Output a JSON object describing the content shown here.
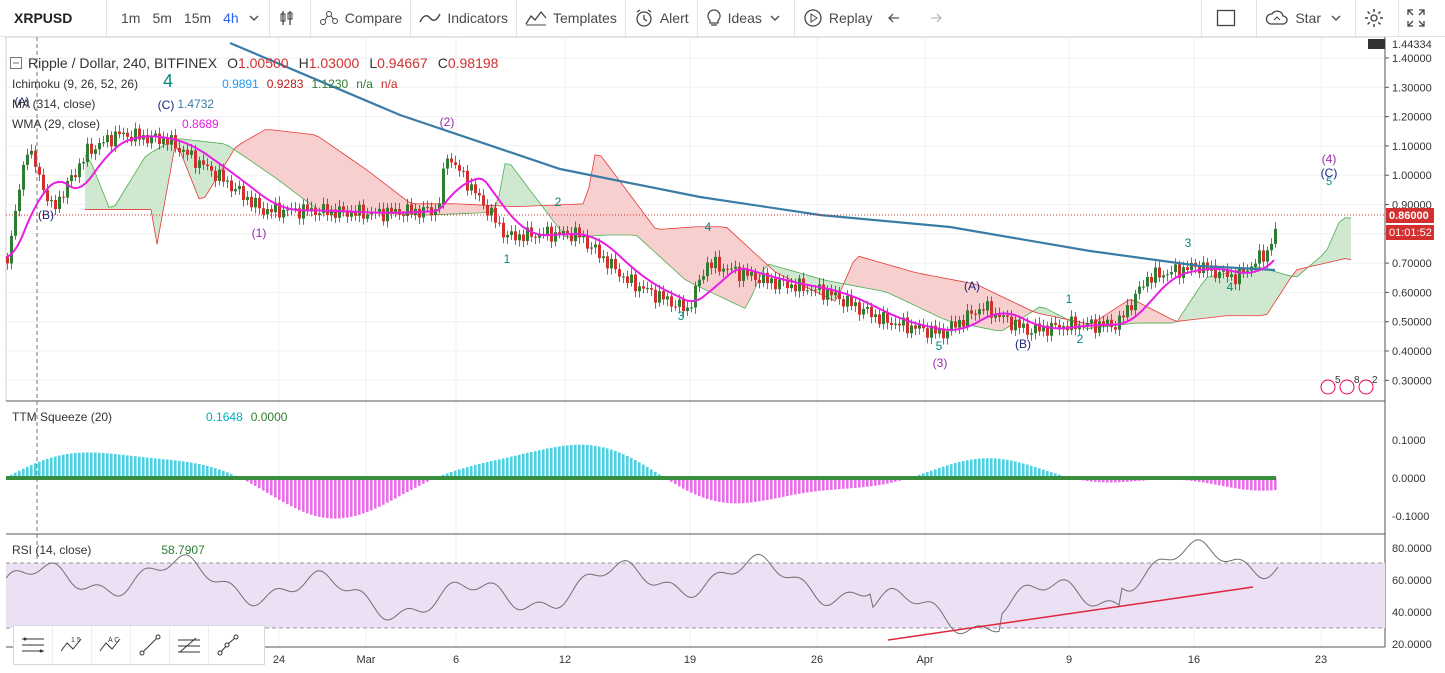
{
  "toolbar": {
    "symbol": "XRPUSD",
    "intervals": [
      "1m",
      "5m",
      "15m",
      "4h"
    ],
    "active_interval": "4h",
    "compare": "Compare",
    "indicators": "Indicators",
    "templates": "Templates",
    "alert": "Alert",
    "ideas": "Ideas",
    "replay": "Replay",
    "star": "Star"
  },
  "main_legend": {
    "title": "Ripple / Dollar, 240, BITFINEX",
    "open_label": "O",
    "open": "1.00500",
    "high_label": "H",
    "high": "1.03000",
    "low_label": "L",
    "low": "0.94667",
    "close_label": "C",
    "close": "0.98198"
  },
  "indicators": {
    "ichimoku": {
      "label": "Ichimoku (9, 26, 52, 26)",
      "v1": "0.9891",
      "v2": "0.9283",
      "v3": "1.1230",
      "v4": "n/a",
      "v5": "n/a"
    },
    "ma": {
      "label": "MA (314, close)",
      "value": "1.4732"
    },
    "wma": {
      "label": "WMA (29, close)",
      "value": "0.8689"
    },
    "ttm": {
      "label": "TTM Squeeze (20)",
      "v1": "0.1648",
      "v2": "0.0000"
    },
    "rsi": {
      "label": "RSI (14, close)",
      "value": "58.7907"
    }
  },
  "price_axis": {
    "ticks": [
      "1.40000",
      "1.30000",
      "1.20000",
      "1.10000",
      "1.00000",
      "0.90000",
      "0.80000",
      "0.70000",
      "0.60000",
      "0.50000",
      "0.40000",
      "0.30000"
    ],
    "top_tag": "1.44334",
    "price_tag": "0.86000",
    "countdown_tag": "01:01:52"
  },
  "ttm_axis": {
    "ticks": [
      "0.1000",
      "0.0000",
      "-0.1000"
    ]
  },
  "rsi_axis": {
    "ticks": [
      "80.0000",
      "60.0000",
      "40.0000",
      "20.0000"
    ]
  },
  "time_axis": {
    "ticks": [
      "24",
      "Mar",
      "6",
      "12",
      "19",
      "26",
      "Apr",
      "9",
      "16",
      "23"
    ]
  },
  "wave_labels": [
    "4",
    "(A)",
    "(C)",
    "(B)",
    "(1)",
    "(2)",
    "1",
    "2",
    "3",
    "4",
    "5",
    "(3)",
    "(A)",
    "(B)",
    "1",
    "2",
    "3",
    "4",
    "(4)",
    "(C)",
    "5"
  ],
  "colors": {
    "ma": "#3a7ca5",
    "wma": "#e91ee5",
    "up": "#2e7d32",
    "down": "#d32f2f",
    "cloud_up": "#cfe8cf",
    "cloud_down": "#f7cfcf",
    "rsi_band": "#ece0f5",
    "ttm_up": "#4dd0e1",
    "ttm_down": "#e66ee6",
    "accent": "#2962ff"
  },
  "icons": [
    "chart-bars-icon",
    "compare-icon",
    "indicators-icon",
    "templates-icon",
    "alert-icon",
    "ideas-icon",
    "replay-icon",
    "undo-icon",
    "redo-icon",
    "fullscreen-box-icon",
    "star-cloud-icon",
    "gear-icon",
    "expand-icon"
  ]
}
